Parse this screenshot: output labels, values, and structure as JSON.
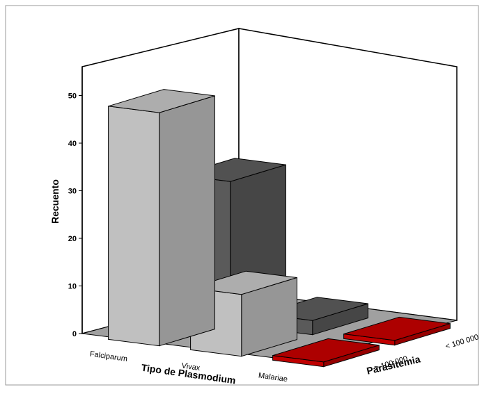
{
  "chart_data": {
    "type": "bar",
    "subtype": "3d-clustered",
    "ylabel": "Recuento",
    "xlabel": "Tipo de Plasmodium",
    "zlabel": "Parasitemia",
    "ylim": [
      0,
      55
    ],
    "yticks": [
      "0",
      "10",
      "20",
      "30",
      "40",
      "50"
    ],
    "categories": [
      "Falciparum",
      "Vivax",
      "Malariae"
    ],
    "depth_categories": [
      "> 100 000",
      "< 100 000"
    ],
    "series": [
      {
        "name": "> 100 000",
        "values": [
          49,
          13,
          1
        ]
      },
      {
        "name": "< 100 000",
        "values": [
          30,
          3,
          1
        ]
      }
    ],
    "colors": {
      "front_row": "#c0c0c0",
      "back_row": "#5a5a5a",
      "small_values": "#c00000",
      "floor": "#a0a0a0",
      "frame": "#000000"
    }
  }
}
